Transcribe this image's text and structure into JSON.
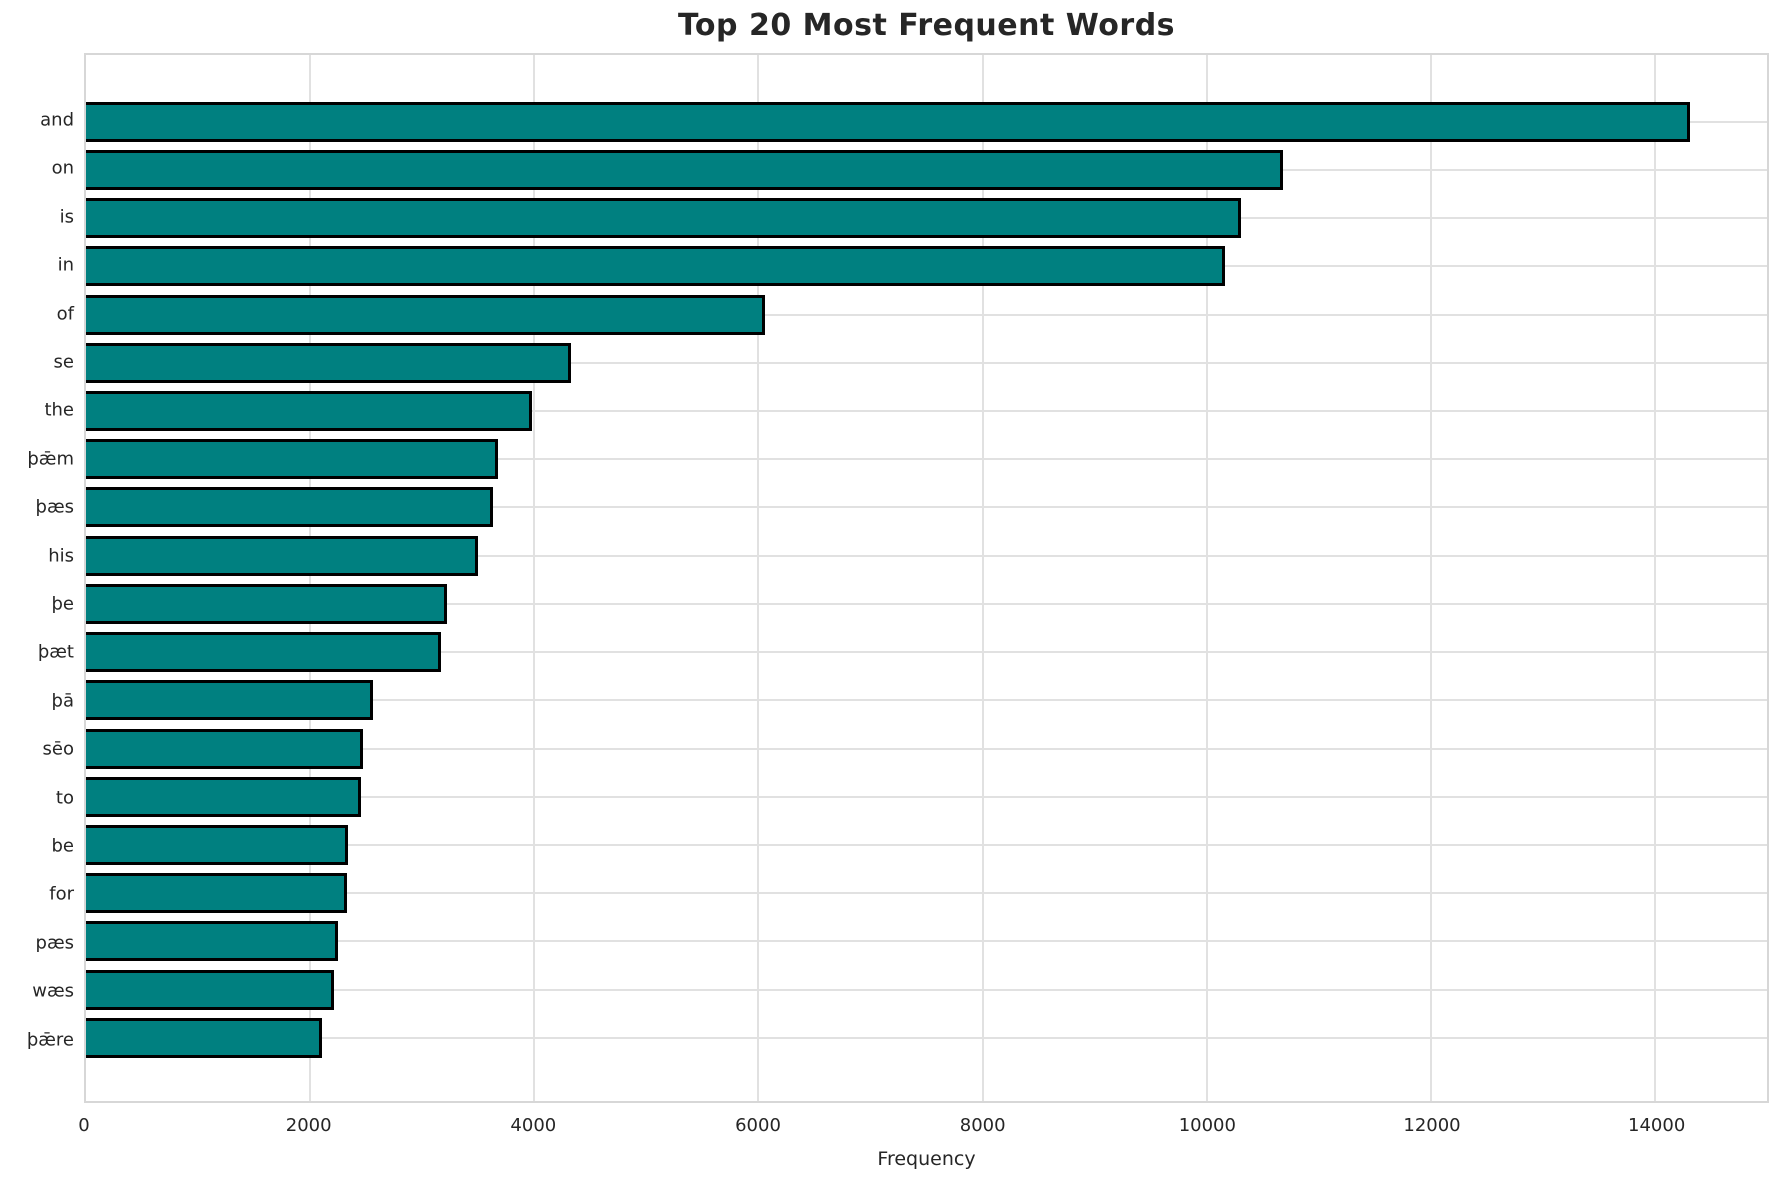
{
  "chart_data": {
    "type": "bar",
    "orientation": "horizontal",
    "title": "Top 20 Most Frequent Words",
    "xlabel": "Frequency",
    "ylabel": "",
    "categories": [
      "and",
      "on",
      "is",
      "in",
      "of",
      "se",
      "the",
      "þǣm",
      "þæs",
      "his",
      "þe",
      "þæt",
      "þā",
      "sēo",
      "to",
      "be",
      "for",
      "pæs",
      "wæs",
      "þǣre"
    ],
    "values": [
      14310,
      10680,
      10310,
      10160,
      6060,
      4330,
      3980,
      3680,
      3630,
      3500,
      3220,
      3170,
      2560,
      2470,
      2450,
      2340,
      2330,
      2250,
      2210,
      2110
    ],
    "xlim": [
      0,
      15000
    ],
    "xticks": [
      0,
      2000,
      4000,
      6000,
      8000,
      10000,
      12000,
      14000
    ],
    "grid": "both",
    "legend": "none",
    "bar_color": "#008080",
    "bar_edge_color": "#000000",
    "gridline_color": "#e1e1e1"
  }
}
